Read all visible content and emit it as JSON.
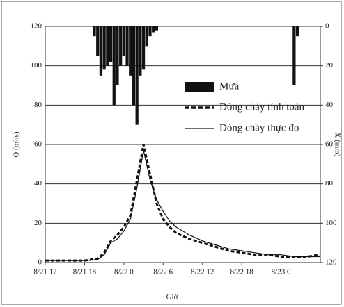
{
  "chart_data": {
    "type": "line",
    "x_label": "Giờ",
    "y_label": "Q (m³/s)",
    "y2_label": "X (mm)",
    "xlim": [
      0,
      42
    ],
    "xticks": [
      {
        "value": 0,
        "label": "8/21 12"
      },
      {
        "value": 6,
        "label": "8/21 18"
      },
      {
        "value": 12,
        "label": "8/22 0"
      },
      {
        "value": 18,
        "label": "8/22 6"
      },
      {
        "value": 24,
        "label": "8/22 12"
      },
      {
        "value": 30,
        "label": "8/22 18"
      },
      {
        "value": 36,
        "label": "8/23 0"
      }
    ],
    "ylim": [
      0,
      120
    ],
    "yticks": [
      0,
      20,
      40,
      60,
      80,
      100,
      120
    ],
    "y2lim": [
      120,
      0
    ],
    "y2ticks": [
      0,
      20,
      40,
      60,
      80,
      100,
      120
    ],
    "grid": true,
    "legend": "right",
    "series": [
      {
        "name": "Mưa",
        "type": "bar",
        "axis": "y2",
        "color": "#111",
        "x": [
          7.5,
          8,
          8.5,
          9,
          9.5,
          10,
          10.5,
          11,
          11.5,
          12,
          12.5,
          13,
          13.5,
          14,
          14.5,
          15,
          15.5,
          16,
          16.5,
          17,
          38,
          38.5
        ],
        "values": [
          5,
          15,
          25,
          22,
          20,
          18,
          40,
          30,
          20,
          15,
          20,
          25,
          40,
          50,
          25,
          22,
          10,
          5,
          3,
          2,
          30,
          5
        ]
      },
      {
        "name": "Dòng chảy tính toán",
        "type": "dashed",
        "color": "#111",
        "x": [
          0,
          2,
          4,
          6,
          8,
          9,
          10,
          11,
          12,
          13,
          14,
          15,
          16,
          17,
          18,
          19,
          20,
          22,
          24,
          26,
          28,
          30,
          32,
          34,
          36,
          38,
          40,
          42
        ],
        "values": [
          1,
          1,
          1,
          1,
          2,
          5,
          11,
          14,
          18,
          24,
          42,
          60,
          45,
          30,
          22,
          18,
          15,
          12,
          10,
          8,
          6,
          5,
          4,
          4,
          3,
          3,
          3,
          4
        ]
      },
      {
        "name": "Dòng chảy thực đo",
        "type": "solid",
        "color": "#111",
        "x": [
          0,
          2,
          4,
          6,
          8,
          9,
          10,
          11,
          12,
          13,
          14,
          15,
          16,
          17,
          18,
          19,
          20,
          22,
          24,
          26,
          28,
          30,
          32,
          34,
          36,
          38,
          40,
          42
        ],
        "values": [
          1,
          1,
          1,
          1,
          1.5,
          4,
          10,
          12,
          16,
          22,
          38,
          57,
          42,
          32,
          26,
          21,
          18,
          14,
          11,
          9,
          7,
          6,
          5,
          4,
          4,
          3,
          3,
          3
        ]
      }
    ]
  }
}
